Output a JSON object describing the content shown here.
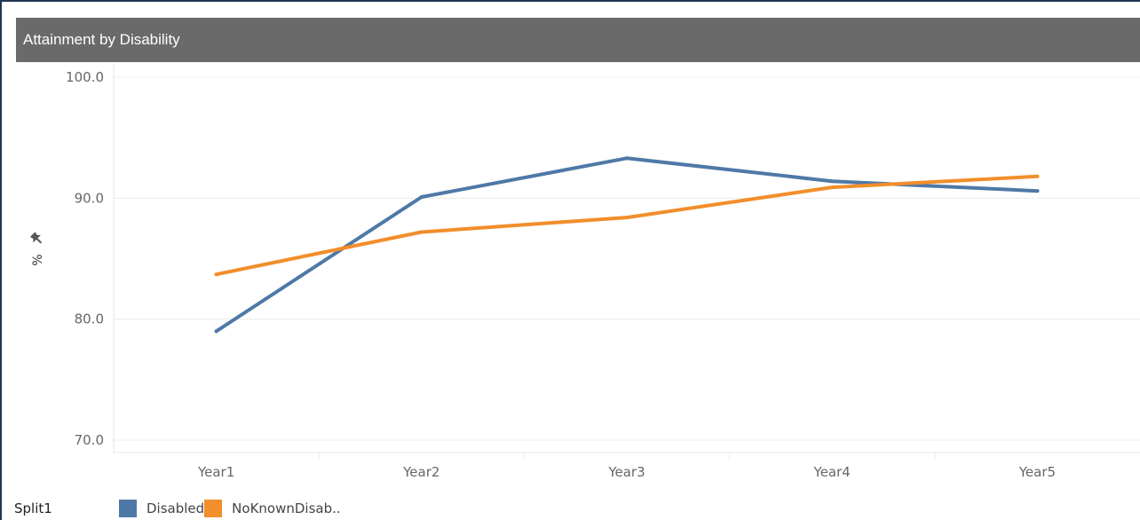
{
  "chart_data": {
    "type": "line",
    "title": "Attainment by Disability",
    "xlabel": "",
    "ylabel": "%",
    "categories": [
      "Year1",
      "Year2",
      "Year3",
      "Year4",
      "Year5"
    ],
    "ylim": [
      69.0,
      100.0
    ],
    "yticks": [
      "100.0",
      "90.0",
      "80.0",
      "70.0"
    ],
    "grid": true,
    "legend_position": "bottom",
    "legend_title": "Split1",
    "series": [
      {
        "name": "Disabled",
        "color": "#4e79a7",
        "values": [
          79.0,
          90.1,
          93.3,
          91.4,
          90.6
        ]
      },
      {
        "name": "NoKnownDisab..",
        "color": "#f28e2b",
        "values": [
          83.7,
          87.2,
          88.4,
          90.9,
          91.8
        ]
      }
    ]
  },
  "icons": {
    "pin": "pin-icon"
  }
}
